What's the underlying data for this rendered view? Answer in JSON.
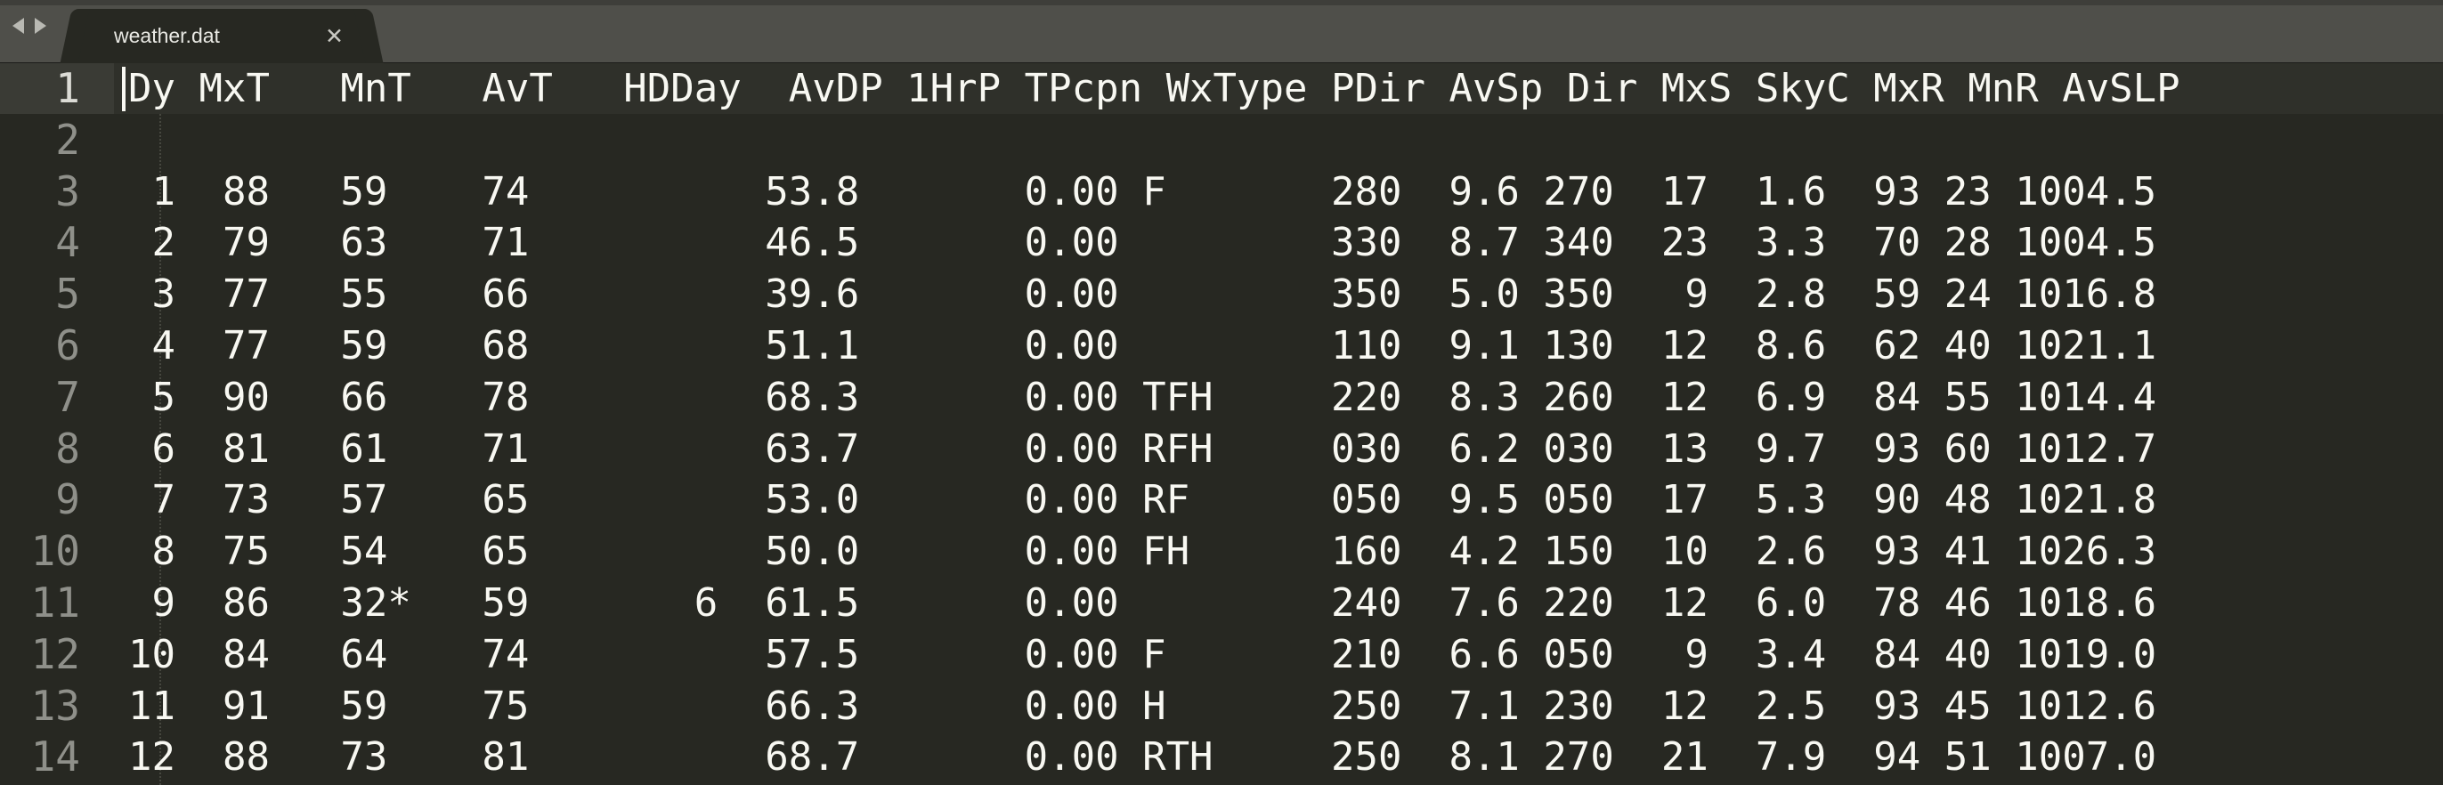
{
  "tabs": [
    {
      "title": "weather.dat",
      "close_icon": "close-icon"
    }
  ],
  "nav": {
    "back_icon": "chevron-left-icon",
    "forward_icon": "chevron-right-icon"
  },
  "editor": {
    "lines": [
      {
        "number": "1",
        "text": "Dy MxT   MnT   AvT   HDDay  AvDP 1HrP TPcpn WxType PDir AvSp Dir MxS SkyC MxR MnR AvSLP"
      },
      {
        "number": "2",
        "text": ""
      },
      {
        "number": "3",
        "text": " 1  88   59    74          53.8       0.00 F       280  9.6 270  17  1.6  93 23 1004.5"
      },
      {
        "number": "4",
        "text": " 2  79   63    71          46.5       0.00         330  8.7 340  23  3.3  70 28 1004.5"
      },
      {
        "number": "5",
        "text": " 3  77   55    66          39.6       0.00         350  5.0 350   9  2.8  59 24 1016.8"
      },
      {
        "number": "6",
        "text": " 4  77   59    68          51.1       0.00         110  9.1 130  12  8.6  62 40 1021.1"
      },
      {
        "number": "7",
        "text": " 5  90   66    78          68.3       0.00 TFH     220  8.3 260  12  6.9  84 55 1014.4"
      },
      {
        "number": "8",
        "text": " 6  81   61    71          63.7       0.00 RFH     030  6.2 030  13  9.7  93 60 1012.7"
      },
      {
        "number": "9",
        "text": " 7  73   57    65          53.0       0.00 RF      050  9.5 050  17  5.3  90 48 1021.8"
      },
      {
        "number": "10",
        "text": " 8  75   54    65          50.0       0.00 FH      160  4.2 150  10  2.6  93 41 1026.3"
      },
      {
        "number": "11",
        "text": " 9  86   32*   59       6  61.5       0.00         240  7.6 220  12  6.0  78 46 1018.6"
      },
      {
        "number": "12",
        "text": "10  84   64    74          57.5       0.00 F       210  6.6 050   9  3.4  84 40 1019.0"
      },
      {
        "number": "13",
        "text": "11  91   59    75          66.3       0.00 H       250  7.1 230  12  2.5  93 45 1012.6"
      },
      {
        "number": "14",
        "text": "12  88   73    81          68.7       0.00 RTH     250  8.1 270  21  7.9  94 51 1007.0"
      }
    ]
  }
}
